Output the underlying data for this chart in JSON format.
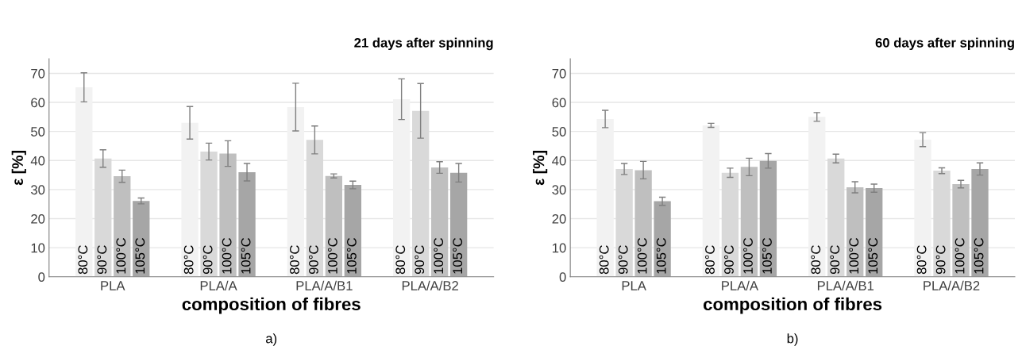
{
  "chart_data": [
    {
      "type": "bar",
      "title": "21 days after spinning",
      "xlabel": "composition of fibres",
      "ylabel": "ε [%]",
      "annotations": [
        "a)"
      ],
      "categories": [
        "PLA",
        "PLA/A",
        "PLA/A/B1",
        "PLA/A/B2"
      ],
      "series": [
        {
          "name": "80°C",
          "color": "#f2f2f2",
          "values": [
            65.2,
            53,
            58.4,
            61.1
          ],
          "errors": [
            5,
            5.6,
            8.2,
            7
          ]
        },
        {
          "name": "90°C",
          "color": "#d9d9d9",
          "values": [
            40.7,
            43.1,
            47.1,
            57.1
          ],
          "errors": [
            3,
            2.9,
            4.8,
            9.4
          ]
        },
        {
          "name": "100°C",
          "color": "#bfbfbf",
          "values": [
            34.6,
            42.4,
            34.7,
            37.6
          ],
          "errors": [
            2.1,
            4.4,
            0.7,
            2
          ]
        },
        {
          "name": "105°C",
          "color": "#a6a6a6",
          "values": [
            26.1,
            36,
            31.6,
            35.8
          ],
          "errors": [
            1,
            3,
            1.3,
            3.2
          ]
        }
      ],
      "ylim": [
        0,
        75
      ],
      "yticks": [
        0,
        10,
        20,
        30,
        40,
        50,
        60,
        70
      ],
      "grid": "y",
      "legend": false
    },
    {
      "type": "bar",
      "title": "60 days after spinning",
      "xlabel": "composition of fibres",
      "ylabel": "ε [%]",
      "annotations": [
        "b)"
      ],
      "categories": [
        "PLA",
        "PLA/A",
        "PLA/A/B1",
        "PLA/A/B2"
      ],
      "series": [
        {
          "name": "80°C",
          "color": "#f2f2f2",
          "values": [
            54.3,
            52.1,
            55,
            47.2
          ],
          "errors": [
            3,
            0.7,
            1.5,
            2.4
          ]
        },
        {
          "name": "90°C",
          "color": "#d9d9d9",
          "values": [
            37.1,
            35.8,
            40.7,
            36.5
          ],
          "errors": [
            1.9,
            1.6,
            1.5,
            1
          ]
        },
        {
          "name": "100°C",
          "color": "#bfbfbf",
          "values": [
            36.7,
            37.8,
            30.8,
            31.9
          ],
          "errors": [
            3,
            3,
            1.9,
            1.3
          ]
        },
        {
          "name": "105°C",
          "color": "#a6a6a6",
          "values": [
            26,
            39.9,
            30.5,
            37.1
          ],
          "errors": [
            1.4,
            2.5,
            1.4,
            2.1
          ]
        }
      ],
      "ylim": [
        0,
        75
      ],
      "yticks": [
        0,
        10,
        20,
        30,
        40,
        50,
        60,
        70
      ],
      "grid": "y",
      "legend": false
    }
  ]
}
